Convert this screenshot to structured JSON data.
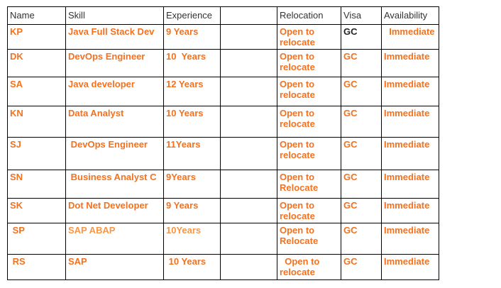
{
  "colors": {
    "background": "#ffffff",
    "table_border": "#000000",
    "header_text": "#333333",
    "data_orange": "#F4711D",
    "data_orange_light": "#F79646",
    "data_black": "#222222"
  },
  "table": {
    "column_headers": [
      "Name",
      "Skill",
      "Experience",
      "",
      "Relocation",
      "Visa",
      "Availability"
    ],
    "rows": [
      {
        "cells": [
          "KP",
          "Java Full Stack Dev",
          "9 Years",
          "",
          "Open to relocate",
          "GC",
          "  Immediate"
        ],
        "cell_colors": {
          "5": "data_black"
        }
      },
      {
        "cells": [
          "DK",
          "DevOps Engineer",
          "10  Years",
          "",
          "Open to relocate",
          "GC",
          "Immediate"
        ]
      },
      {
        "cells": [
          "SA",
          "Java developer",
          "12 Years",
          "",
          "Open to relocate",
          "GC",
          "Immediate"
        ]
      },
      {
        "cells": [
          "KN",
          "Data Analyst",
          "10 Years",
          "",
          "Open to relocate",
          "GC",
          "Immediate"
        ]
      },
      {
        "cells": [
          "SJ",
          " DevOps Engineer",
          "11Years",
          "",
          "Open to relocate",
          "GC",
          "Immediate"
        ]
      },
      {
        "cells": [
          "SN",
          " Business Analyst C",
          "9Years",
          "",
          "Open to Relocate",
          "GC",
          "Immediate"
        ]
      },
      {
        "cells": [
          "SK",
          "Dot Net Developer",
          "9 Years",
          "",
          "Open to relocate",
          "GC",
          "Immediate"
        ]
      },
      {
        "cells": [
          " SP",
          "SAP ABAP",
          "10Years",
          "",
          "Open to Relocate",
          "GC",
          "Immediate"
        ],
        "cell_colors": {
          "1": "data_orange_light",
          "2": "data_orange_light"
        }
      },
      {
        "cells": [
          " RS",
          "SAP",
          " 10 Years",
          "",
          "  Open to relocate",
          "GC",
          "Immediate"
        ]
      }
    ]
  }
}
